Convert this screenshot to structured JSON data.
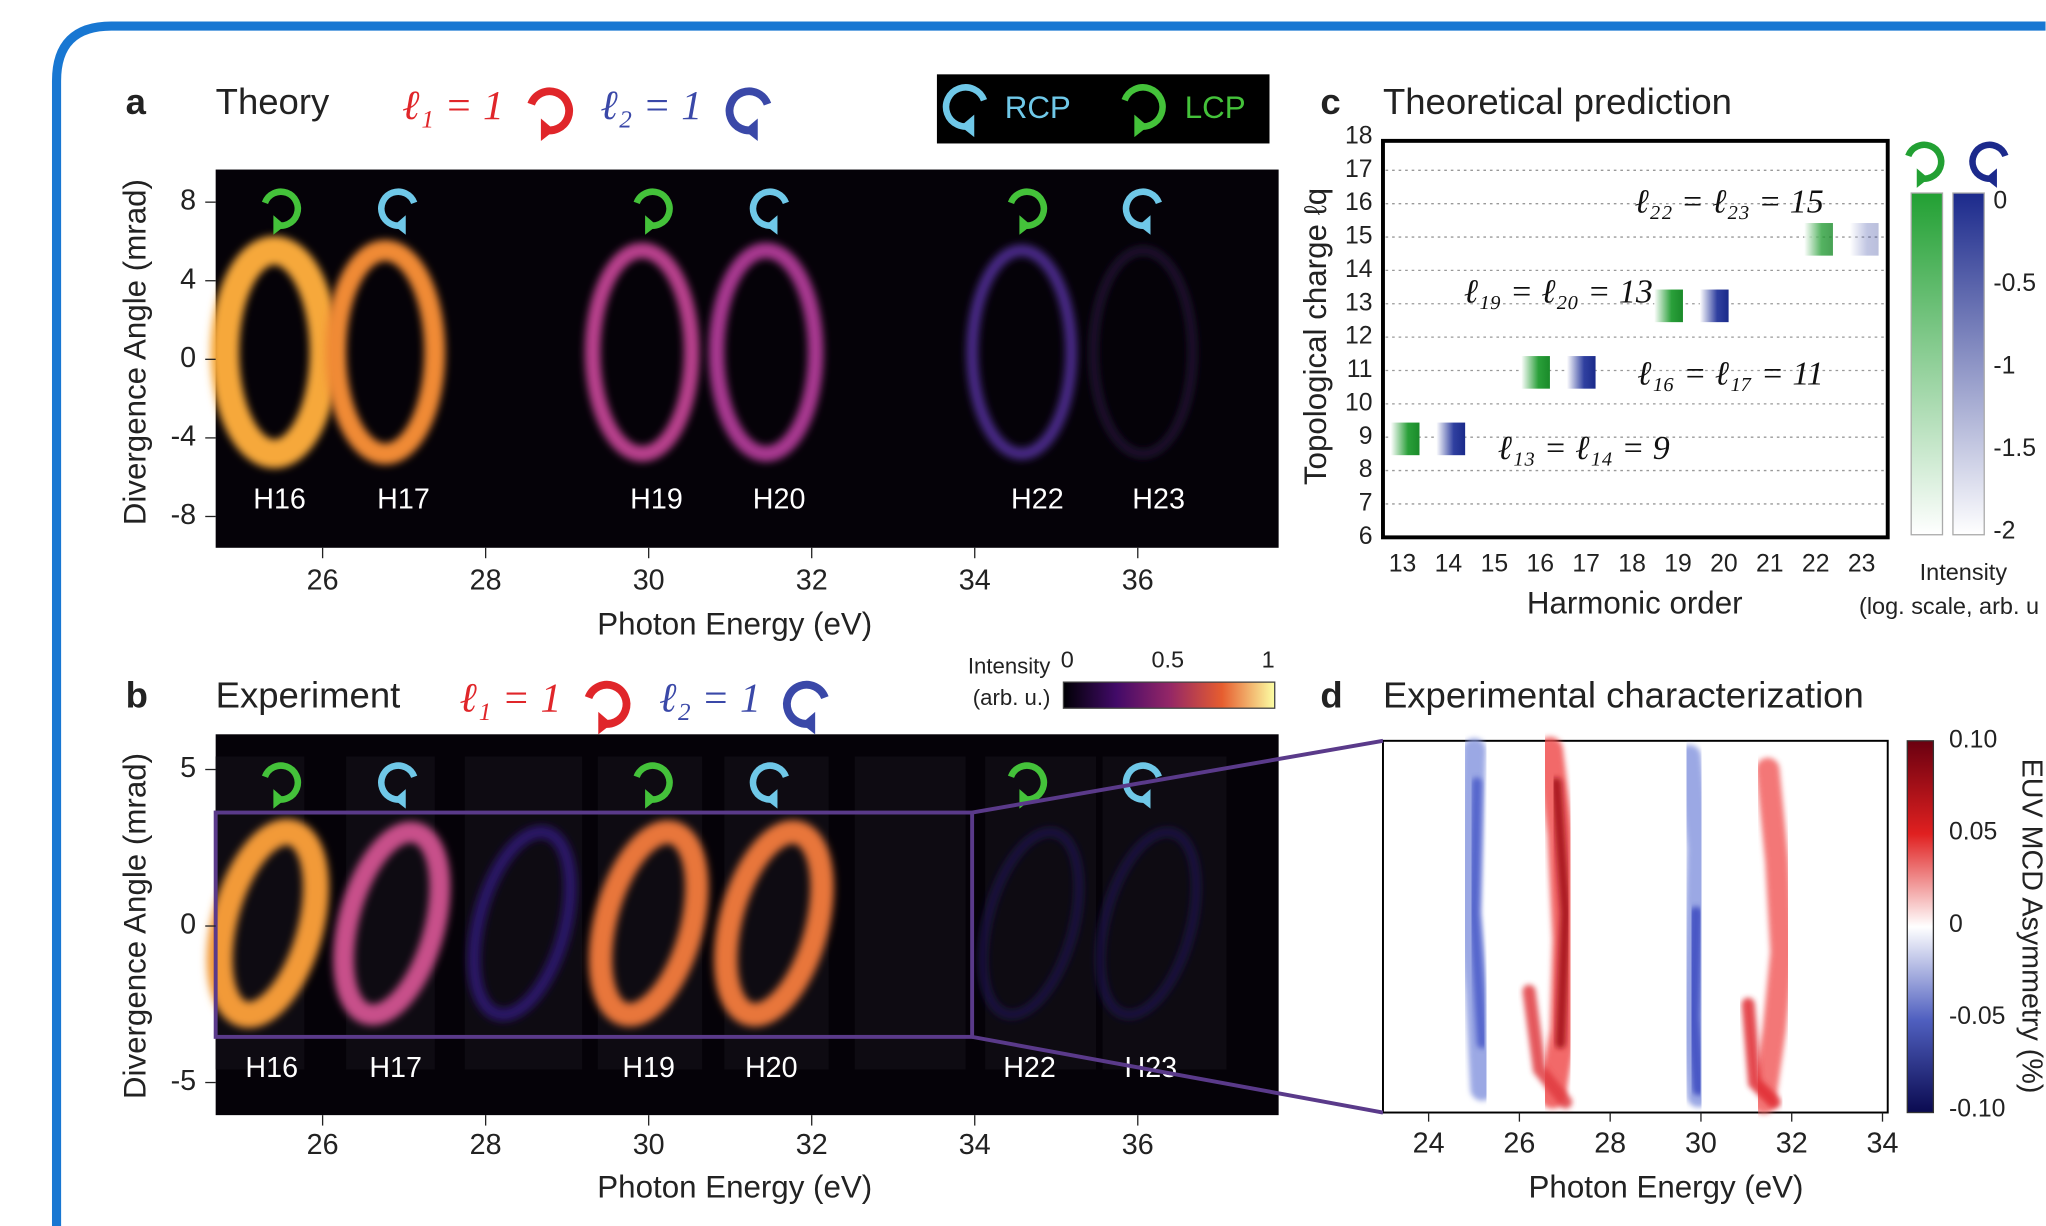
{
  "panels": {
    "a": {
      "label": "a",
      "title": "Theory",
      "l1": "ℓ₁ = 1",
      "l2": "ℓ₂ = 1",
      "legend": {
        "rcp": "RCP",
        "lcp": "LCP"
      },
      "yticks": [
        "8",
        "4",
        "0",
        "-4",
        "-8"
      ],
      "xticks": [
        "26",
        "28",
        "30",
        "32",
        "34",
        "36"
      ],
      "ylabel": "Divergence Angle (mrad)",
      "xlabel": "Photon Energy (eV)",
      "harmonics": [
        "H16",
        "H17",
        "H19",
        "H20",
        "H22",
        "H23"
      ]
    },
    "b": {
      "label": "b",
      "title": "Experiment",
      "l1": "ℓ₁ = 1",
      "l2": "ℓ₂ = 1",
      "colorbar": {
        "label": [
          "Intensity",
          "(arb. u.)"
        ],
        "ticks": [
          "0",
          "0.5",
          "1"
        ]
      },
      "yticks": [
        "5",
        "0",
        "-5"
      ],
      "xticks": [
        "26",
        "28",
        "30",
        "32",
        "34",
        "36"
      ],
      "ylabel": "Divergence Angle (mrad)",
      "xlabel": "Photon Energy (eV)",
      "harmonics": [
        "H16",
        "H17",
        "H19",
        "H20",
        "H22",
        "H23"
      ]
    },
    "c": {
      "label": "c",
      "title": "Theoretical prediction",
      "yticks": [
        "18",
        "17",
        "16",
        "15",
        "14",
        "13",
        "12",
        "11",
        "10",
        "9",
        "8",
        "7",
        "6"
      ],
      "xticks": [
        "13",
        "14",
        "15",
        "16",
        "17",
        "18",
        "19",
        "20",
        "21",
        "22",
        "23"
      ],
      "ylabel": "Topological charge ℓq",
      "xlabel": "Harmonic order",
      "annotations": [
        "ℓ₂₂ = ℓ₂₃ = 15",
        "ℓ₁₉ = ℓ₂₀ = 13",
        "ℓ₁₆ = ℓ₁₇ = 11",
        "ℓ₁₃ = ℓ₁₄ = 9"
      ],
      "colorbar": {
        "ticks": [
          "0",
          "-0.5",
          "-1",
          "-1.5",
          "-2"
        ],
        "label": [
          "Intensity",
          "(log. scale, arb. u"
        ]
      }
    },
    "d": {
      "label": "d",
      "title": "Experimental characterization",
      "xticks": [
        "24",
        "26",
        "28",
        "30",
        "32",
        "34"
      ],
      "xlabel": "Photon Energy (eV)",
      "colorbar": {
        "ticks": [
          "0.10",
          "0.05",
          "0",
          "-0.05",
          "-0.10"
        ],
        "label": "EUV MCD Asymmetry (%)"
      }
    }
  }
}
